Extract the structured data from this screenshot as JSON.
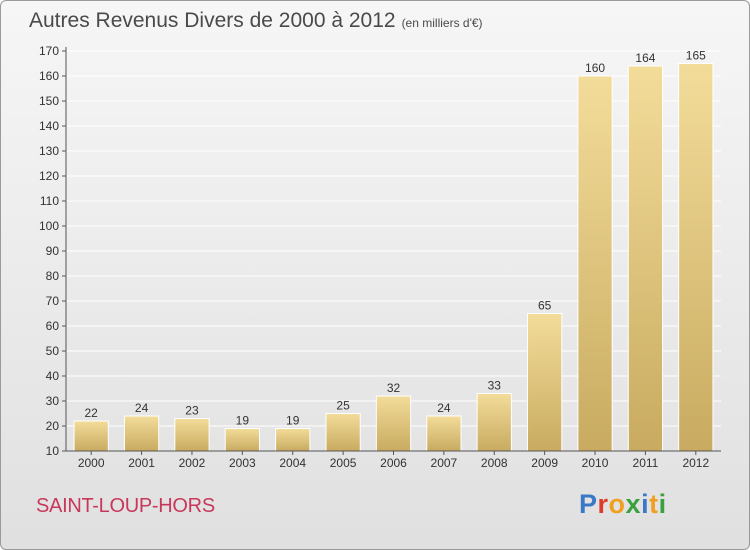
{
  "title": "Autres Revenus Divers de 2000 à 2012",
  "subtitle": "(en milliers d'€)",
  "commune": "SAINT-LOUP-HORS",
  "brand": {
    "text": "Proxiti",
    "letter_colors": [
      "#3a78c8",
      "#e03a2a",
      "#f0a020",
      "#3aa040",
      "#3a78c8",
      "#f0a020",
      "#3aa040"
    ]
  },
  "colors": {
    "bar_light": "#f3dc9a",
    "bar_dark": "#c8ab60",
    "grid": "#ffffff",
    "axis": "#555555"
  },
  "chart_data": {
    "type": "bar",
    "title": "Autres Revenus Divers de 2000 à 2012",
    "subtitle": "(en milliers d'€)",
    "categories": [
      "2000",
      "2001",
      "2002",
      "2003",
      "2004",
      "2005",
      "2006",
      "2007",
      "2008",
      "2009",
      "2010",
      "2011",
      "2012"
    ],
    "values": [
      22,
      24,
      23,
      19,
      19,
      25,
      32,
      24,
      33,
      65,
      160,
      164,
      165
    ],
    "ylim": [
      10,
      170
    ],
    "yticks": [
      10,
      20,
      30,
      40,
      50,
      60,
      70,
      80,
      90,
      100,
      110,
      120,
      130,
      140,
      150,
      160,
      170
    ],
    "grid": true,
    "legend": "none"
  }
}
